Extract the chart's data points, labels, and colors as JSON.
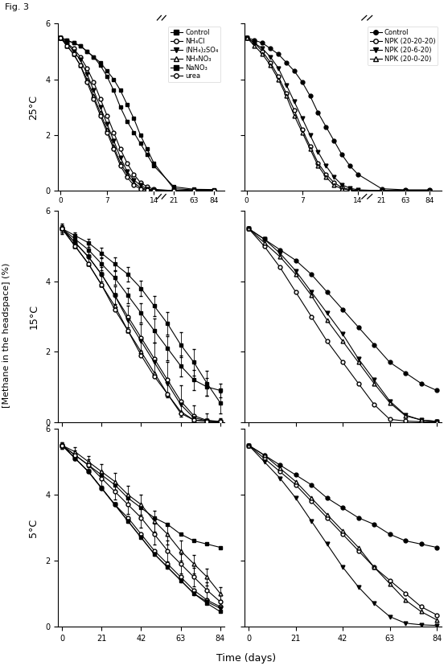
{
  "fig_label": "Fig. 3",
  "ylabel": "[Methane in the headspace] (%)",
  "xlabel": "Time (days)",
  "row_labels": [
    "25°C",
    "15°C",
    "5°C"
  ],
  "left_legend": [
    "Control",
    "NH₄Cl",
    "(NH₄)₂SO₄",
    "NH₄NO₃",
    "NaNO₃",
    "urea"
  ],
  "right_legend": [
    "Control",
    "NPK (20-20-20)",
    "NPK (20-6-20)",
    "NPK (20-0-20)"
  ],
  "left_markers": [
    "s",
    "o",
    "v",
    "^",
    "s",
    "o"
  ],
  "right_markers": [
    "o",
    "o",
    "v",
    "^"
  ],
  "left_filled": [
    true,
    false,
    true,
    false,
    true,
    false
  ],
  "right_filled": [
    true,
    false,
    true,
    false
  ],
  "note_control_left_marker": "filled square",
  "note_nano3_marker": "filled square (same as control but NaNO3 series)",
  "x25": [
    0,
    1,
    2,
    3,
    4,
    5,
    6,
    7,
    8,
    9,
    10,
    11,
    12,
    13,
    14,
    21,
    63,
    84
  ],
  "p25L_control": [
    5.5,
    5.4,
    5.3,
    5.2,
    5.0,
    4.8,
    4.5,
    4.1,
    3.6,
    3.0,
    2.5,
    2.1,
    1.7,
    1.3,
    0.9,
    0.15,
    0.06,
    0.05
  ],
  "p25L_nh4cl": [
    5.5,
    5.3,
    5.1,
    4.8,
    4.4,
    3.9,
    3.3,
    2.7,
    2.1,
    1.5,
    1.0,
    0.6,
    0.3,
    0.15,
    0.06,
    0.01,
    0.01,
    0.01
  ],
  "p25L_nh42so4": [
    5.5,
    5.3,
    5.0,
    4.7,
    4.2,
    3.6,
    3.0,
    2.4,
    1.8,
    1.2,
    0.7,
    0.4,
    0.2,
    0.08,
    0.03,
    0.01,
    0.01,
    0.01
  ],
  "p25L_nh4no3": [
    5.5,
    5.2,
    4.9,
    4.5,
    4.0,
    3.4,
    2.8,
    2.2,
    1.6,
    1.0,
    0.6,
    0.3,
    0.12,
    0.05,
    0.02,
    0.01,
    0.01,
    0.01
  ],
  "p25L_nano3": [
    5.5,
    5.4,
    5.3,
    5.2,
    5.0,
    4.8,
    4.6,
    4.3,
    4.0,
    3.6,
    3.1,
    2.6,
    2.0,
    1.5,
    1.0,
    0.08,
    0.04,
    0.02
  ],
  "p25L_urea": [
    5.5,
    5.2,
    4.9,
    4.5,
    3.9,
    3.3,
    2.7,
    2.1,
    1.5,
    0.9,
    0.5,
    0.2,
    0.08,
    0.03,
    0.01,
    0.01,
    0.01,
    0.01
  ],
  "p25R_control": [
    5.5,
    5.4,
    5.3,
    5.1,
    4.9,
    4.6,
    4.3,
    3.9,
    3.4,
    2.8,
    2.3,
    1.8,
    1.3,
    0.9,
    0.6,
    0.08,
    0.04,
    0.04
  ],
  "p25R_npk202020": [
    5.5,
    5.3,
    5.0,
    4.6,
    4.1,
    3.5,
    2.9,
    2.2,
    1.6,
    1.0,
    0.6,
    0.3,
    0.12,
    0.05,
    0.02,
    0.01,
    0.01,
    0.01
  ],
  "p25R_npk20620": [
    5.5,
    5.3,
    5.1,
    4.8,
    4.4,
    3.8,
    3.2,
    2.6,
    2.0,
    1.4,
    0.9,
    0.5,
    0.22,
    0.1,
    0.04,
    0.01,
    0.01,
    0.01
  ],
  "p25R_npk20020": [
    5.5,
    5.2,
    4.9,
    4.5,
    4.0,
    3.4,
    2.7,
    2.1,
    1.5,
    0.9,
    0.5,
    0.2,
    0.08,
    0.03,
    0.01,
    0.01,
    0.01,
    0.01
  ],
  "x1584": [
    0,
    7,
    14,
    21,
    28,
    35,
    42,
    49,
    56,
    63,
    70,
    77,
    84
  ],
  "p15L_control": [
    5.5,
    5.2,
    4.9,
    4.5,
    4.1,
    3.6,
    3.1,
    2.6,
    2.1,
    1.6,
    1.2,
    1.0,
    0.9
  ],
  "p15L_nh4cl": [
    5.5,
    5.1,
    4.7,
    4.2,
    3.6,
    3.0,
    2.4,
    1.8,
    1.2,
    0.6,
    0.18,
    0.05,
    0.02
  ],
  "p15L_nh42so4": [
    5.5,
    5.1,
    4.7,
    4.2,
    3.6,
    2.9,
    2.3,
    1.7,
    1.1,
    0.5,
    0.12,
    0.04,
    0.01
  ],
  "p15L_nh4no3": [
    5.5,
    5.0,
    4.5,
    3.9,
    3.3,
    2.6,
    2.0,
    1.4,
    0.8,
    0.3,
    0.06,
    0.02,
    0.01
  ],
  "p15L_nano3": [
    5.5,
    5.3,
    5.1,
    4.8,
    4.5,
    4.2,
    3.8,
    3.3,
    2.8,
    2.2,
    1.7,
    1.1,
    0.55
  ],
  "p15L_urea": [
    5.5,
    5.0,
    4.5,
    3.9,
    3.2,
    2.6,
    1.9,
    1.3,
    0.8,
    0.25,
    0.06,
    0.02,
    0.01
  ],
  "p15R_control": [
    5.5,
    5.2,
    4.9,
    4.6,
    4.2,
    3.7,
    3.2,
    2.7,
    2.2,
    1.7,
    1.4,
    1.1,
    0.9
  ],
  "p15R_npk202020": [
    5.5,
    5.0,
    4.4,
    3.7,
    3.0,
    2.3,
    1.7,
    1.1,
    0.5,
    0.08,
    0.03,
    0.01,
    0.01
  ],
  "p15R_npk20620": [
    5.5,
    5.2,
    4.8,
    4.3,
    3.7,
    3.1,
    2.5,
    1.8,
    1.2,
    0.6,
    0.2,
    0.06,
    0.02
  ],
  "p15R_npk20020": [
    5.5,
    5.1,
    4.7,
    4.2,
    3.6,
    2.9,
    2.3,
    1.7,
    1.1,
    0.55,
    0.18,
    0.06,
    0.02
  ],
  "p5L_control": [
    5.5,
    5.2,
    4.9,
    4.6,
    4.3,
    3.9,
    3.6,
    3.3,
    3.1,
    2.8,
    2.6,
    2.5,
    2.4
  ],
  "p5L_nh4cl": [
    5.5,
    5.1,
    4.7,
    4.2,
    3.7,
    3.3,
    2.8,
    2.3,
    1.9,
    1.5,
    1.1,
    0.8,
    0.6
  ],
  "p5L_nh42so4": [
    5.5,
    5.1,
    4.7,
    4.2,
    3.7,
    3.2,
    2.7,
    2.2,
    1.8,
    1.4,
    1.0,
    0.75,
    0.55
  ],
  "p5L_nh4no3": [
    5.5,
    5.3,
    5.0,
    4.7,
    4.4,
    4.0,
    3.7,
    3.2,
    2.8,
    2.3,
    1.9,
    1.5,
    1.0
  ],
  "p5L_nano3": [
    5.5,
    5.1,
    4.7,
    4.2,
    3.7,
    3.2,
    2.7,
    2.2,
    1.8,
    1.4,
    1.0,
    0.7,
    0.45
  ],
  "p5L_urea": [
    5.5,
    5.2,
    4.9,
    4.5,
    4.1,
    3.7,
    3.3,
    2.8,
    2.3,
    1.9,
    1.5,
    1.1,
    0.75
  ],
  "p5R_control": [
    5.5,
    5.2,
    4.9,
    4.6,
    4.3,
    3.9,
    3.6,
    3.3,
    3.1,
    2.8,
    2.6,
    2.5,
    2.4
  ],
  "p5R_npk202020": [
    5.5,
    5.1,
    4.7,
    4.3,
    3.8,
    3.3,
    2.8,
    2.3,
    1.8,
    1.4,
    1.0,
    0.6,
    0.35
  ],
  "p5R_npk20620": [
    5.5,
    5.0,
    4.5,
    3.9,
    3.2,
    2.5,
    1.8,
    1.2,
    0.7,
    0.3,
    0.1,
    0.05,
    0.03
  ],
  "p5R_npk20020": [
    5.5,
    5.2,
    4.8,
    4.4,
    3.9,
    3.4,
    2.9,
    2.4,
    1.8,
    1.3,
    0.8,
    0.45,
    0.2
  ],
  "p15L_yerr_control": [
    0.15,
    0.15,
    0.15,
    0.18,
    0.2,
    0.22,
    0.28,
    0.35,
    0.35,
    0.3,
    0.28,
    0.25,
    0.2
  ],
  "p15L_yerr_nano3": [
    0.1,
    0.1,
    0.12,
    0.15,
    0.18,
    0.2,
    0.22,
    0.28,
    0.32,
    0.35,
    0.38,
    0.35,
    0.3
  ],
  "p15L_yerr_nh4cl": [
    0.1,
    0.12,
    0.15,
    0.2,
    0.25,
    0.3,
    0.38,
    0.45,
    0.5,
    0.45,
    0.3,
    0.2,
    0.1
  ],
  "p5L_yerr_nh4no3": [
    0.1,
    0.15,
    0.18,
    0.22,
    0.25,
    0.28,
    0.3,
    0.32,
    0.32,
    0.3,
    0.28,
    0.25,
    0.2
  ],
  "p5L_yerr_urea": [
    0.1,
    0.15,
    0.18,
    0.22,
    0.25,
    0.28,
    0.3,
    0.32,
    0.32,
    0.3,
    0.28,
    0.25,
    0.2
  ]
}
